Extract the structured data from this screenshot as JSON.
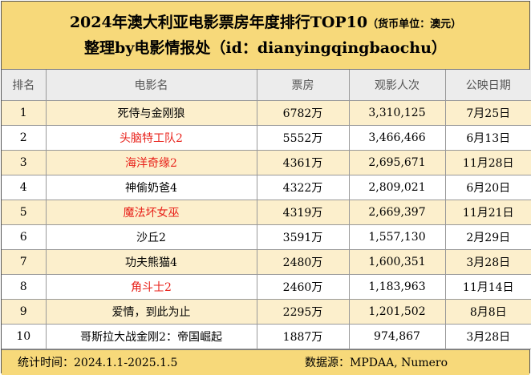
{
  "header": {
    "title": "2024年澳大利亚电影票房年度排行TOP10",
    "unit_note": "（货币单位：澳元）",
    "subtitle": "整理by电影情报处（id：dianyingqingbaochu）"
  },
  "table": {
    "columns": [
      "排名",
      "电影名",
      "票房",
      "观影人次",
      "公映日期"
    ],
    "rows": [
      {
        "rank": "1",
        "title": "死侍与金刚狼",
        "box_office": "6782万",
        "admissions": "3,310,125",
        "release": "7月25日",
        "highlight": false
      },
      {
        "rank": "2",
        "title": "头脑特工队2",
        "box_office": "5552万",
        "admissions": "3,466,466",
        "release": "6月13日",
        "highlight": true
      },
      {
        "rank": "3",
        "title": "海洋奇缘2",
        "box_office": "4361万",
        "admissions": "2,695,671",
        "release": "11月28日",
        "highlight": true
      },
      {
        "rank": "4",
        "title": "神偷奶爸4",
        "box_office": "4322万",
        "admissions": "2,809,021",
        "release": "6月20日",
        "highlight": false
      },
      {
        "rank": "5",
        "title": "魔法坏女巫",
        "box_office": "4319万",
        "admissions": "2,669,397",
        "release": "11月21日",
        "highlight": true
      },
      {
        "rank": "6",
        "title": "沙丘2",
        "box_office": "3591万",
        "admissions": "1,557,130",
        "release": "2月29日",
        "highlight": false
      },
      {
        "rank": "7",
        "title": "功夫熊猫4",
        "box_office": "2480万",
        "admissions": "1,600,351",
        "release": "3月28日",
        "highlight": false
      },
      {
        "rank": "8",
        "title": "角斗士2",
        "box_office": "2460万",
        "admissions": "1,183,963",
        "release": "11月14日",
        "highlight": true
      },
      {
        "rank": "9",
        "title": "爱情，到此为止",
        "box_office": "2295万",
        "admissions": "1,201,502",
        "release": "8月8日",
        "highlight": false
      },
      {
        "rank": "10",
        "title": "哥斯拉大战金刚2：帝国崛起",
        "box_office": "1887万",
        "admissions": "974,867",
        "release": "3月28日",
        "highlight": false
      }
    ]
  },
  "footer": {
    "period": "统计时间：2024.1.1-2025.1.5",
    "source": "数据源：MPDAA, Numero"
  },
  "colors": {
    "header_bg": "#f7d97a",
    "odd_row_bg": "#fcefcc",
    "highlight_text": "#e8211a"
  }
}
